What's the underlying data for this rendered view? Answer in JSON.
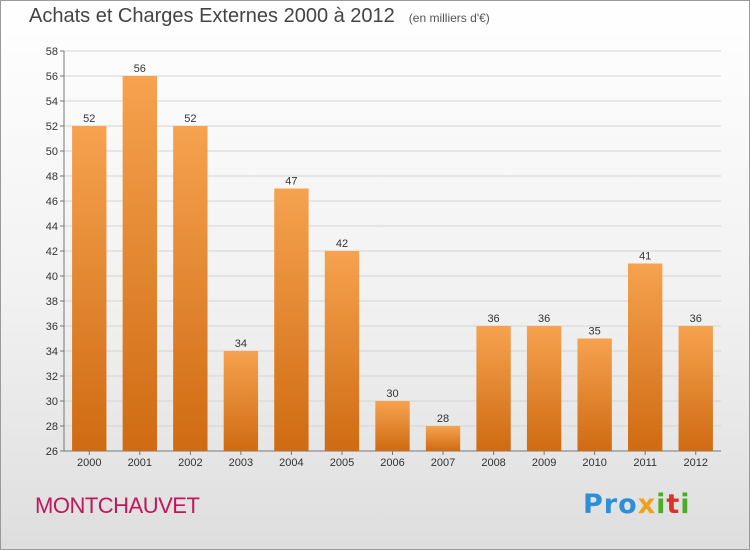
{
  "header": {
    "title": "Achats et Charges Externes 2000 à 2012",
    "unit": "(en milliers d'€)"
  },
  "footer": {
    "place": "MONTCHAUVET",
    "logo_text": "Proxiti",
    "logo_letters": [
      {
        "ch": "P",
        "color": "#2e8fd6"
      },
      {
        "ch": "r",
        "color": "#2e8fd6"
      },
      {
        "ch": "o",
        "color": "#2e8fd6"
      },
      {
        "ch": "x",
        "color": "#f0a019"
      },
      {
        "ch": "i",
        "color": "#4dac26"
      },
      {
        "ch": "t",
        "color": "#d9332a"
      },
      {
        "ch": "i",
        "color": "#4dac26"
      }
    ]
  },
  "chart_data": {
    "type": "bar",
    "categories": [
      "2000",
      "2001",
      "2002",
      "2003",
      "2004",
      "2005",
      "2006",
      "2007",
      "2008",
      "2009",
      "2010",
      "2011",
      "2012"
    ],
    "values": [
      52,
      56,
      52,
      34,
      47,
      42,
      30,
      28,
      36,
      36,
      35,
      41,
      36
    ],
    "ylim": [
      26,
      58
    ],
    "yticks": [
      26,
      28,
      30,
      32,
      34,
      36,
      38,
      40,
      42,
      44,
      46,
      48,
      50,
      52,
      54,
      56,
      58
    ],
    "grid": true,
    "bar_color_top": "#f6a24f",
    "bar_color_bottom": "#cf6b12",
    "xlabel": "",
    "ylabel": ""
  }
}
